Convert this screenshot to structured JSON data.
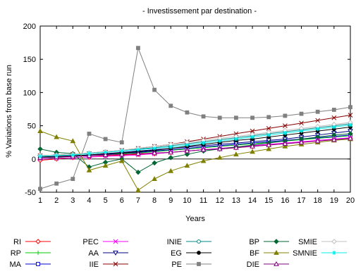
{
  "chart_data": {
    "type": "line",
    "title": "- Investissement par destination -",
    "xlabel": "Years",
    "ylabel": "% Variations from base run",
    "xlim": [
      1,
      20
    ],
    "ylim": [
      -50,
      200
    ],
    "xticks": [
      1,
      2,
      3,
      4,
      5,
      6,
      7,
      8,
      9,
      10,
      11,
      12,
      13,
      14,
      15,
      16,
      17,
      18,
      19,
      20
    ],
    "yticks": [
      -50,
      0,
      50,
      100,
      150,
      200
    ],
    "grid": false,
    "legend_position": "bottom",
    "x": [
      1,
      2,
      3,
      4,
      5,
      6,
      7,
      8,
      9,
      10,
      11,
      12,
      13,
      14,
      15,
      16,
      17,
      18,
      19,
      20
    ],
    "series": [
      {
        "name": "RI",
        "color": "#ff0000",
        "marker": "diamond-open",
        "values": [
          -2,
          0,
          2,
          3,
          5,
          6,
          7,
          8,
          10,
          12,
          14,
          15,
          17,
          19,
          21,
          23,
          25,
          27,
          29,
          31
        ]
      },
      {
        "name": "RP",
        "color": "#00cc00",
        "marker": "plus",
        "values": [
          0,
          2,
          4,
          5,
          7,
          8,
          9,
          11,
          13,
          15,
          17,
          19,
          21,
          23,
          25,
          27,
          29,
          31,
          33,
          35
        ]
      },
      {
        "name": "MA",
        "color": "#0000cc",
        "marker": "square-open",
        "values": [
          2,
          3,
          4,
          5,
          7,
          9,
          10,
          12,
          14,
          16,
          18,
          20,
          22,
          24,
          26,
          28,
          30,
          32,
          34,
          36
        ]
      },
      {
        "name": "PEC",
        "color": "#ff00ff",
        "marker": "x",
        "values": [
          0,
          1,
          2,
          3,
          4,
          5,
          6,
          8,
          10,
          12,
          14,
          16,
          18,
          20,
          22,
          24,
          26,
          28,
          30,
          32
        ]
      },
      {
        "name": "AA",
        "color": "#000080",
        "marker": "triangle-down-open",
        "values": [
          3,
          4,
          5,
          6,
          8,
          10,
          12,
          14,
          16,
          18,
          20,
          22,
          24,
          26,
          28,
          30,
          33,
          36,
          39,
          42
        ]
      },
      {
        "name": "IIE",
        "color": "#880000",
        "marker": "x",
        "values": [
          5,
          6,
          7,
          8,
          10,
          13,
          16,
          19,
          22,
          26,
          30,
          34,
          38,
          42,
          46,
          50,
          54,
          58,
          62,
          66
        ]
      },
      {
        "name": "INIE",
        "color": "#008888",
        "marker": "circle-open",
        "values": [
          5,
          6,
          7,
          9,
          11,
          13,
          15,
          17,
          20,
          23,
          26,
          29,
          32,
          35,
          38,
          41,
          44,
          47,
          50,
          53
        ]
      },
      {
        "name": "EG",
        "color": "#000000",
        "marker": "circle",
        "values": [
          3,
          4,
          5,
          6,
          8,
          9,
          11,
          13,
          16,
          19,
          22,
          25,
          28,
          30,
          33,
          36,
          39,
          42,
          45,
          48
        ]
      },
      {
        "name": "PE",
        "color": "#808080",
        "marker": "square",
        "values": [
          -45,
          -37,
          -30,
          38,
          30,
          25,
          167,
          104,
          80,
          70,
          64,
          62,
          62,
          62,
          63,
          65,
          68,
          71,
          74,
          78
        ]
      },
      {
        "name": "BP",
        "color": "#006633",
        "marker": "diamond",
        "values": [
          15,
          10,
          8,
          -12,
          -5,
          0,
          -20,
          -6,
          2,
          7,
          12,
          15,
          18,
          21,
          24,
          27,
          30,
          33,
          36,
          38
        ]
      },
      {
        "name": "BF",
        "color": "#808000",
        "marker": "triangle",
        "values": [
          42,
          33,
          27,
          -17,
          -10,
          -3,
          -47,
          -30,
          -18,
          -10,
          -3,
          2,
          7,
          11,
          15,
          19,
          22,
          25,
          28,
          30
        ]
      },
      {
        "name": "DIE",
        "color": "#800080",
        "marker": "triangle-open",
        "values": [
          2,
          3,
          4,
          5,
          6,
          7,
          8,
          9,
          10,
          12,
          14,
          15,
          17,
          19,
          21,
          23,
          25,
          27,
          29,
          31
        ]
      },
      {
        "name": "SMIE",
        "color": "#c0c0c0",
        "marker": "diamond-open",
        "values": [
          5,
          6,
          7,
          9,
          11,
          13,
          16,
          19,
          22,
          25,
          28,
          31,
          34,
          37,
          40,
          43,
          46,
          49,
          52,
          55
        ]
      },
      {
        "name": "SMNIE",
        "color": "#00eeee",
        "marker": "star",
        "values": [
          4,
          5,
          6,
          8,
          10,
          12,
          14,
          16,
          18,
          21,
          24,
          27,
          30,
          33,
          36,
          39,
          42,
          45,
          48,
          51
        ]
      }
    ]
  }
}
